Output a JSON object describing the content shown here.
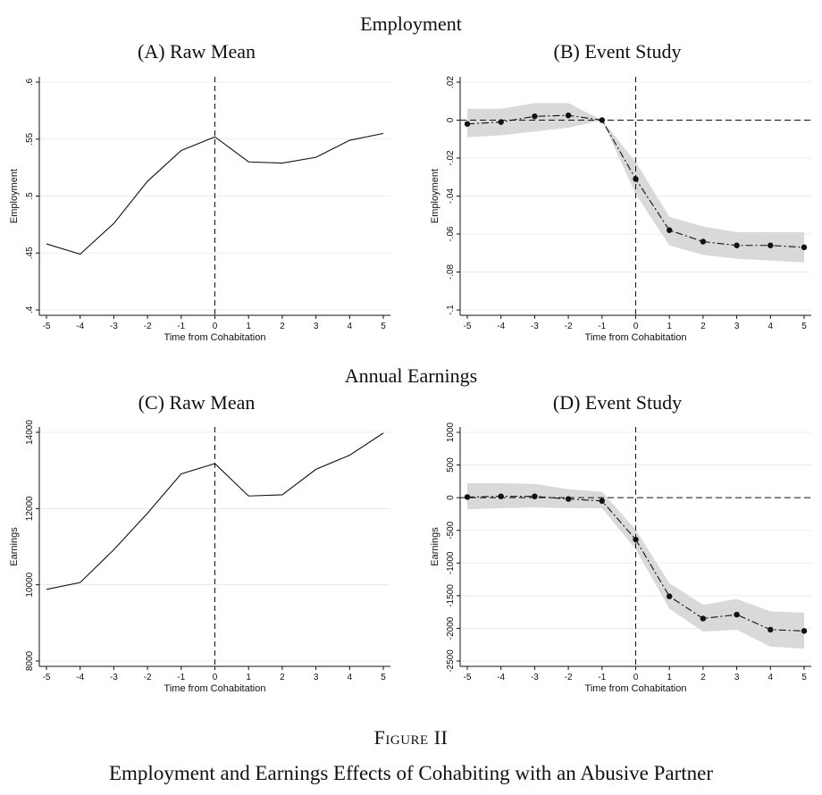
{
  "sections": {
    "top": "Employment",
    "bottom": "Annual Earnings"
  },
  "figure": {
    "label": "Figure II",
    "caption": "Employment and Earnings Effects of Cohabiting with an Abusive Partner"
  },
  "chart_data": [
    {
      "id": "A",
      "type": "line",
      "title": "(A) Raw Mean",
      "xlabel": "Time from Cohabitation",
      "ylabel": "Employment",
      "x": [
        -5,
        -4,
        -3,
        -2,
        -1,
        0,
        1,
        2,
        3,
        4,
        5
      ],
      "values": [
        0.458,
        0.449,
        0.476,
        0.513,
        0.54,
        0.552,
        0.53,
        0.529,
        0.534,
        0.549,
        0.555
      ],
      "xlim": [
        -5,
        5
      ],
      "ylim": [
        0.4,
        0.6
      ],
      "yticks": [
        0.4,
        0.45,
        0.5,
        0.55,
        0.6
      ],
      "ytick_labels": [
        ".4",
        ".45",
        ".5",
        ".55",
        ".6"
      ],
      "xticks": [
        -5,
        -4,
        -3,
        -2,
        -1,
        0,
        1,
        2,
        3,
        4,
        5
      ],
      "xtick_labels": [
        "-5",
        "-4",
        "-3",
        "-2",
        "-1",
        "0",
        "1",
        "2",
        "3",
        "4",
        "5"
      ],
      "vline": 0,
      "grid": true
    },
    {
      "id": "B",
      "type": "line",
      "title": "(B) Event Study",
      "xlabel": "Time from Cohabitation",
      "ylabel": "Employment",
      "x": [
        -5,
        -4,
        -3,
        -2,
        -1,
        0,
        1,
        2,
        3,
        4,
        5
      ],
      "values": [
        -0.002,
        -0.001,
        0.002,
        0.0025,
        0,
        -0.031,
        -0.058,
        -0.064,
        -0.066,
        -0.066,
        -0.067
      ],
      "ci_lower": [
        -0.009,
        -0.008,
        -0.006,
        -0.004,
        0,
        -0.039,
        -0.066,
        -0.071,
        -0.073,
        -0.074,
        -0.075
      ],
      "ci_upper": [
        0.006,
        0.006,
        0.009,
        0.009,
        0,
        -0.022,
        -0.051,
        -0.056,
        -0.059,
        -0.059,
        -0.059
      ],
      "xlim": [
        -5,
        5
      ],
      "ylim": [
        -0.1,
        0.02
      ],
      "yticks": [
        -0.1,
        -0.08,
        -0.06,
        -0.04,
        -0.02,
        0,
        0.02
      ],
      "ytick_labels": [
        "-.1",
        "-.08",
        "-.06",
        "-.04",
        "-.02",
        "0",
        ".02"
      ],
      "xticks": [
        -5,
        -4,
        -3,
        -2,
        -1,
        0,
        1,
        2,
        3,
        4,
        5
      ],
      "xtick_labels": [
        "-5",
        "-4",
        "-3",
        "-2",
        "-1",
        "0",
        "1",
        "2",
        "3",
        "4",
        "5"
      ],
      "vline": 0,
      "hline": 0,
      "grid": true
    },
    {
      "id": "C",
      "type": "line",
      "title": "(C) Raw Mean",
      "xlabel": "Time from Cohabitation",
      "ylabel": "Earnings",
      "x": [
        -5,
        -4,
        -3,
        -2,
        -1,
        0,
        1,
        2,
        3,
        4,
        5
      ],
      "values": [
        9880,
        10060,
        10920,
        11880,
        12910,
        13180,
        12330,
        12360,
        13030,
        13400,
        13980
      ],
      "xlim": [
        -5,
        5
      ],
      "ylim": [
        8000,
        14000
      ],
      "yticks": [
        8000,
        10000,
        12000,
        14000
      ],
      "ytick_labels": [
        "8000",
        "10000",
        "12000",
        "14000"
      ],
      "xticks": [
        -5,
        -4,
        -3,
        -2,
        -1,
        0,
        1,
        2,
        3,
        4,
        5
      ],
      "xtick_labels": [
        "-5",
        "-4",
        "-3",
        "-2",
        "-1",
        "0",
        "1",
        "2",
        "3",
        "4",
        "5"
      ],
      "vline": 0,
      "grid": true
    },
    {
      "id": "D",
      "type": "line",
      "title": "(D) Event Study",
      "xlabel": "Time from Cohabitation",
      "ylabel": "Earnings",
      "x": [
        -5,
        -4,
        -3,
        -2,
        -1,
        0,
        1,
        2,
        3,
        4,
        5
      ],
      "values": [
        10,
        20,
        20,
        -20,
        -50,
        -640,
        -1510,
        -1850,
        -1790,
        -2020,
        -2040
      ],
      "ci_lower": [
        -180,
        -160,
        -150,
        -160,
        -160,
        -790,
        -1700,
        -2050,
        -2020,
        -2280,
        -2310
      ],
      "ci_upper": [
        220,
        220,
        210,
        130,
        90,
        -490,
        -1310,
        -1640,
        -1550,
        -1740,
        -1760
      ],
      "xlim": [
        -5,
        5
      ],
      "ylim": [
        -2500,
        1000
      ],
      "yticks": [
        -2500,
        -2000,
        -1500,
        -1000,
        -500,
        0,
        500,
        1000
      ],
      "ytick_labels": [
        "-2500",
        "-2000",
        "-1500",
        "-1000",
        "-500",
        "0",
        "500",
        "1000"
      ],
      "xticks": [
        -5,
        -4,
        -3,
        -2,
        -1,
        0,
        1,
        2,
        3,
        4,
        5
      ],
      "xtick_labels": [
        "-5",
        "-4",
        "-3",
        "-2",
        "-1",
        "0",
        "1",
        "2",
        "3",
        "4",
        "5"
      ],
      "vline": 0,
      "hline": 0,
      "grid": true
    }
  ]
}
